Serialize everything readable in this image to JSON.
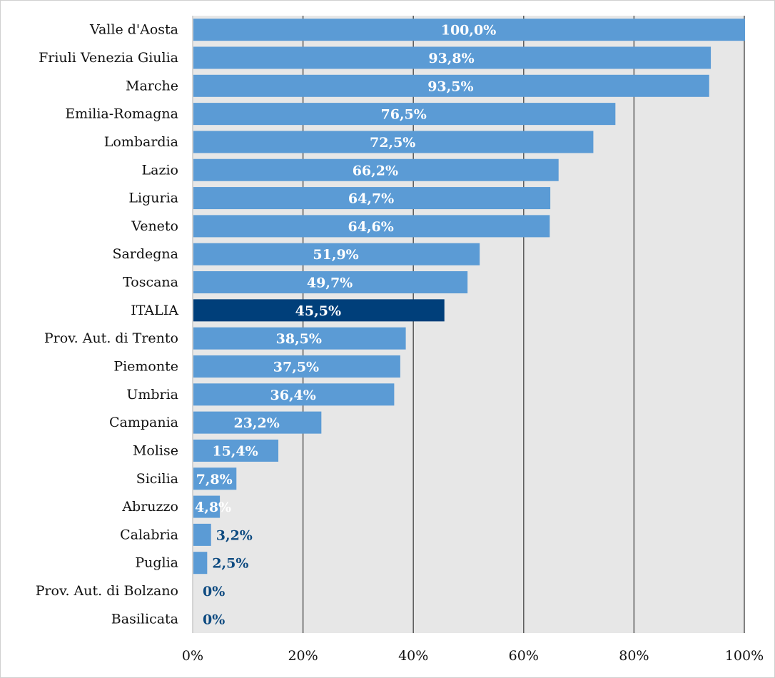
{
  "chart_data": {
    "type": "bar",
    "orientation": "horizontal",
    "title": "",
    "xlabel": "",
    "ylabel": "",
    "xlim": [
      0,
      100
    ],
    "grid": true,
    "x_ticks": [
      "0%",
      "20%",
      "40%",
      "60%",
      "80%",
      "100%"
    ],
    "categories": [
      "Valle d'Aosta",
      "Friuli Venezia Giulia",
      "Marche",
      "Emilia-Romagna",
      "Lombardia",
      "Lazio",
      "Liguria",
      "Veneto",
      "Sardegna",
      "Toscana",
      "ITALIA",
      "Prov. Aut. di Trento",
      "Piemonte",
      "Umbria",
      "Campania",
      "Molise",
      "Sicilia",
      "Abruzzo",
      "Calabria",
      "Puglia",
      "Prov. Aut. di Bolzano",
      "Basilicata"
    ],
    "values": [
      100.0,
      93.8,
      93.5,
      76.5,
      72.5,
      66.2,
      64.7,
      64.6,
      51.9,
      49.7,
      45.5,
      38.5,
      37.5,
      36.4,
      23.2,
      15.4,
      7.8,
      4.8,
      3.2,
      2.5,
      0,
      0
    ],
    "labels": [
      "100,0%",
      "93,8%",
      "93,5%",
      "76,5%",
      "72,5%",
      "66,2%",
      "64,7%",
      "64,6%",
      "51,9%",
      "49,7%",
      "45,5%",
      "38,5%",
      "37,5%",
      "36,4%",
      "23,2%",
      "15,4%",
      "7,8%",
      "4,8%",
      "3,2%",
      "2,5%",
      "0%",
      "0%"
    ],
    "highlight": "ITALIA",
    "colors": {
      "bar": "#5b9bd5",
      "highlight": "#003f7a",
      "label_outside": "#0d4a80",
      "plot_bg": "#e7e7e7",
      "grid": "#595959"
    }
  }
}
